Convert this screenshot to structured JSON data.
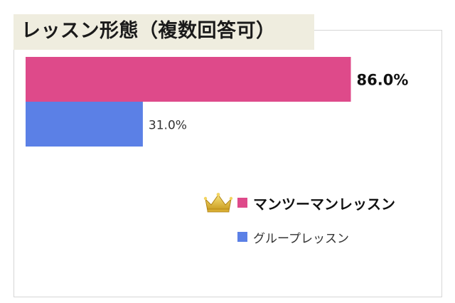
{
  "chart_data": {
    "type": "bar",
    "orientation": "horizontal",
    "title": "レッスン形態（複数回答可）",
    "categories": [
      "マンツーマンレッスン",
      "グループレッスン"
    ],
    "values": [
      86.0,
      31.0
    ],
    "data_labels": [
      "86.0%",
      "31.0%"
    ],
    "xlim": [
      0,
      100
    ],
    "grid": false,
    "legend": {
      "placement": "right",
      "items": [
        {
          "label": "マンツーマンレッスン",
          "color": "#de4a8a",
          "highlight": true,
          "icon": "crown-icon"
        },
        {
          "label": "グループレッスン",
          "color": "#5b80e6",
          "highlight": false
        }
      ]
    },
    "colors": [
      "#de4a8a",
      "#5b80e6"
    ]
  }
}
